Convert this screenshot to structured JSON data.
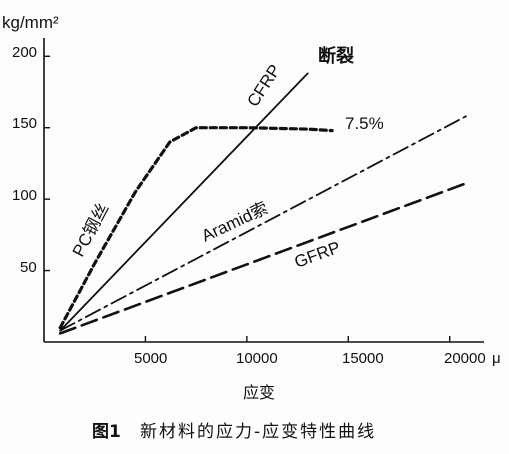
{
  "chart_data": {
    "type": "line",
    "title": "",
    "ylabel": "kg/mm²",
    "xlabel": "应变",
    "x_end_unit": "μ",
    "xlim": [
      0,
      21000
    ],
    "ylim": [
      0,
      210
    ],
    "xticks": [
      {
        "value": 5000,
        "label": "5000"
      },
      {
        "value": 10000,
        "label": "10000"
      },
      {
        "value": 15000,
        "label": "15000"
      },
      {
        "value": 20000,
        "label": "20000"
      }
    ],
    "yticks": [
      {
        "value": 50,
        "label": "50"
      },
      {
        "value": 100,
        "label": "100"
      },
      {
        "value": 150,
        "label": "150"
      },
      {
        "value": 200,
        "label": "200"
      }
    ],
    "series": [
      {
        "name": "PC钢丝",
        "style": "short-dash",
        "points": [
          [
            800,
            10
          ],
          [
            2500,
            55
          ],
          [
            4500,
            105
          ],
          [
            6200,
            140
          ],
          [
            7500,
            150
          ],
          [
            10000,
            150
          ],
          [
            13000,
            149
          ],
          [
            14200,
            148
          ]
        ]
      },
      {
        "name": "CFRP",
        "style": "solid",
        "points": [
          [
            800,
            8
          ],
          [
            13000,
            188
          ]
        ]
      },
      {
        "name": "Aramid索",
        "style": "dash-dot",
        "points": [
          [
            800,
            8
          ],
          [
            20800,
            158
          ]
        ]
      },
      {
        "name": "GFRP",
        "style": "long-dash",
        "points": [
          [
            800,
            6
          ],
          [
            20800,
            111
          ]
        ]
      }
    ],
    "annotations": [
      {
        "id": "break",
        "text": "断裂"
      },
      {
        "id": "pct",
        "text": "7.5%"
      }
    ],
    "grid": false,
    "legend": "none"
  },
  "figure": {
    "caption_num": "图1",
    "caption_text": "新材料的应力-应变特性曲线"
  }
}
